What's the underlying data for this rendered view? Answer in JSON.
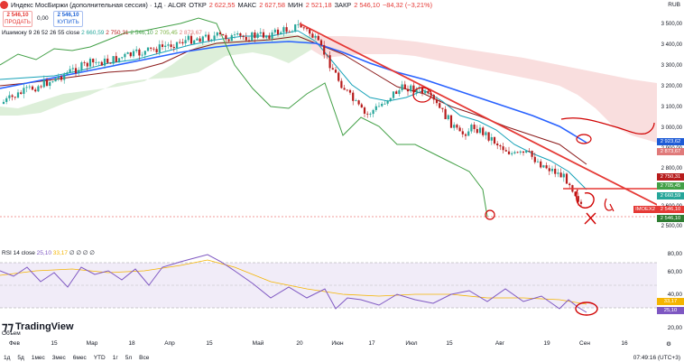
{
  "header": {
    "title": "Индекс МосБиржи (дополнительная сессия) · 1Д · ALOR",
    "open_label": "ОТКР",
    "open": "2 622,55",
    "high_label": "МАКС",
    "high": "2 627,58",
    "low_label": "МИН",
    "low": "2 521,18",
    "close_label": "ЗАКР",
    "close": "2 546,10",
    "change": "−84,32 (−3,21%)",
    "currency": "RUB"
  },
  "trade": {
    "sell_price": "2 546,10",
    "sell_label": "ПРОДАТЬ",
    "spread": "0,00",
    "buy_price": "2 546,10",
    "buy_label": "КУПИТЬ"
  },
  "ichimoku_legend": {
    "name": "Ишимоку 9 26 52 26 55 close",
    "v1": "2 660,59",
    "v2": "2 750,31",
    "v3": "2 546,10",
    "v4": "2 705,45",
    "v5": "2 873,67"
  },
  "rsi_legend": {
    "name": "RSI 14 close",
    "v1": "25,10",
    "v2": "33,17",
    "zeros": "∅ ∅ ∅ ∅"
  },
  "price_axis": [
    "3 500,00",
    "3 400,00",
    "3 300,00",
    "3 200,00",
    "3 100,00",
    "3 000,00",
    "2 900,00",
    "2 800,00",
    "2 700,00",
    "2 600,00",
    "2 500,00"
  ],
  "price_badges": [
    {
      "label": "2 923,62",
      "color": "#1e5bd6"
    },
    {
      "label": "2 873,67",
      "color": "#e07a7a"
    },
    {
      "label": "2 750,31",
      "color": "#b71c1c"
    },
    {
      "label": "2 705,45",
      "color": "#43a047"
    },
    {
      "label": "2 660,59",
      "color": "#26a69a"
    },
    {
      "label": "2 546,10",
      "color": "#e53935"
    },
    {
      "label": "2 546,10",
      "color": "#2e7d32"
    }
  ],
  "imoex_tag": "IMOEX2",
  "rsi_axis": [
    "80,00",
    "60,00",
    "40,00",
    "20,00"
  ],
  "rsi_badges": [
    {
      "label": "33,17",
      "color": "#f4b400"
    },
    {
      "label": "25,10",
      "color": "#7e57c2"
    }
  ],
  "volume_label": "Объем",
  "time_axis": [
    "Фев",
    "15",
    "Мар",
    "18",
    "Апр",
    "15",
    "Май",
    "20",
    "Июн",
    "17",
    "Июл",
    "15",
    "Авг",
    "19",
    "Сен",
    "16"
  ],
  "logo_text": "TradingView",
  "footer": {
    "ranges": [
      "1д",
      "5д",
      "1мес",
      "3мес",
      "6мес",
      "YTD",
      "1г",
      "5л",
      "Все"
    ],
    "time": "07:49:16 (UTC+3)"
  }
}
